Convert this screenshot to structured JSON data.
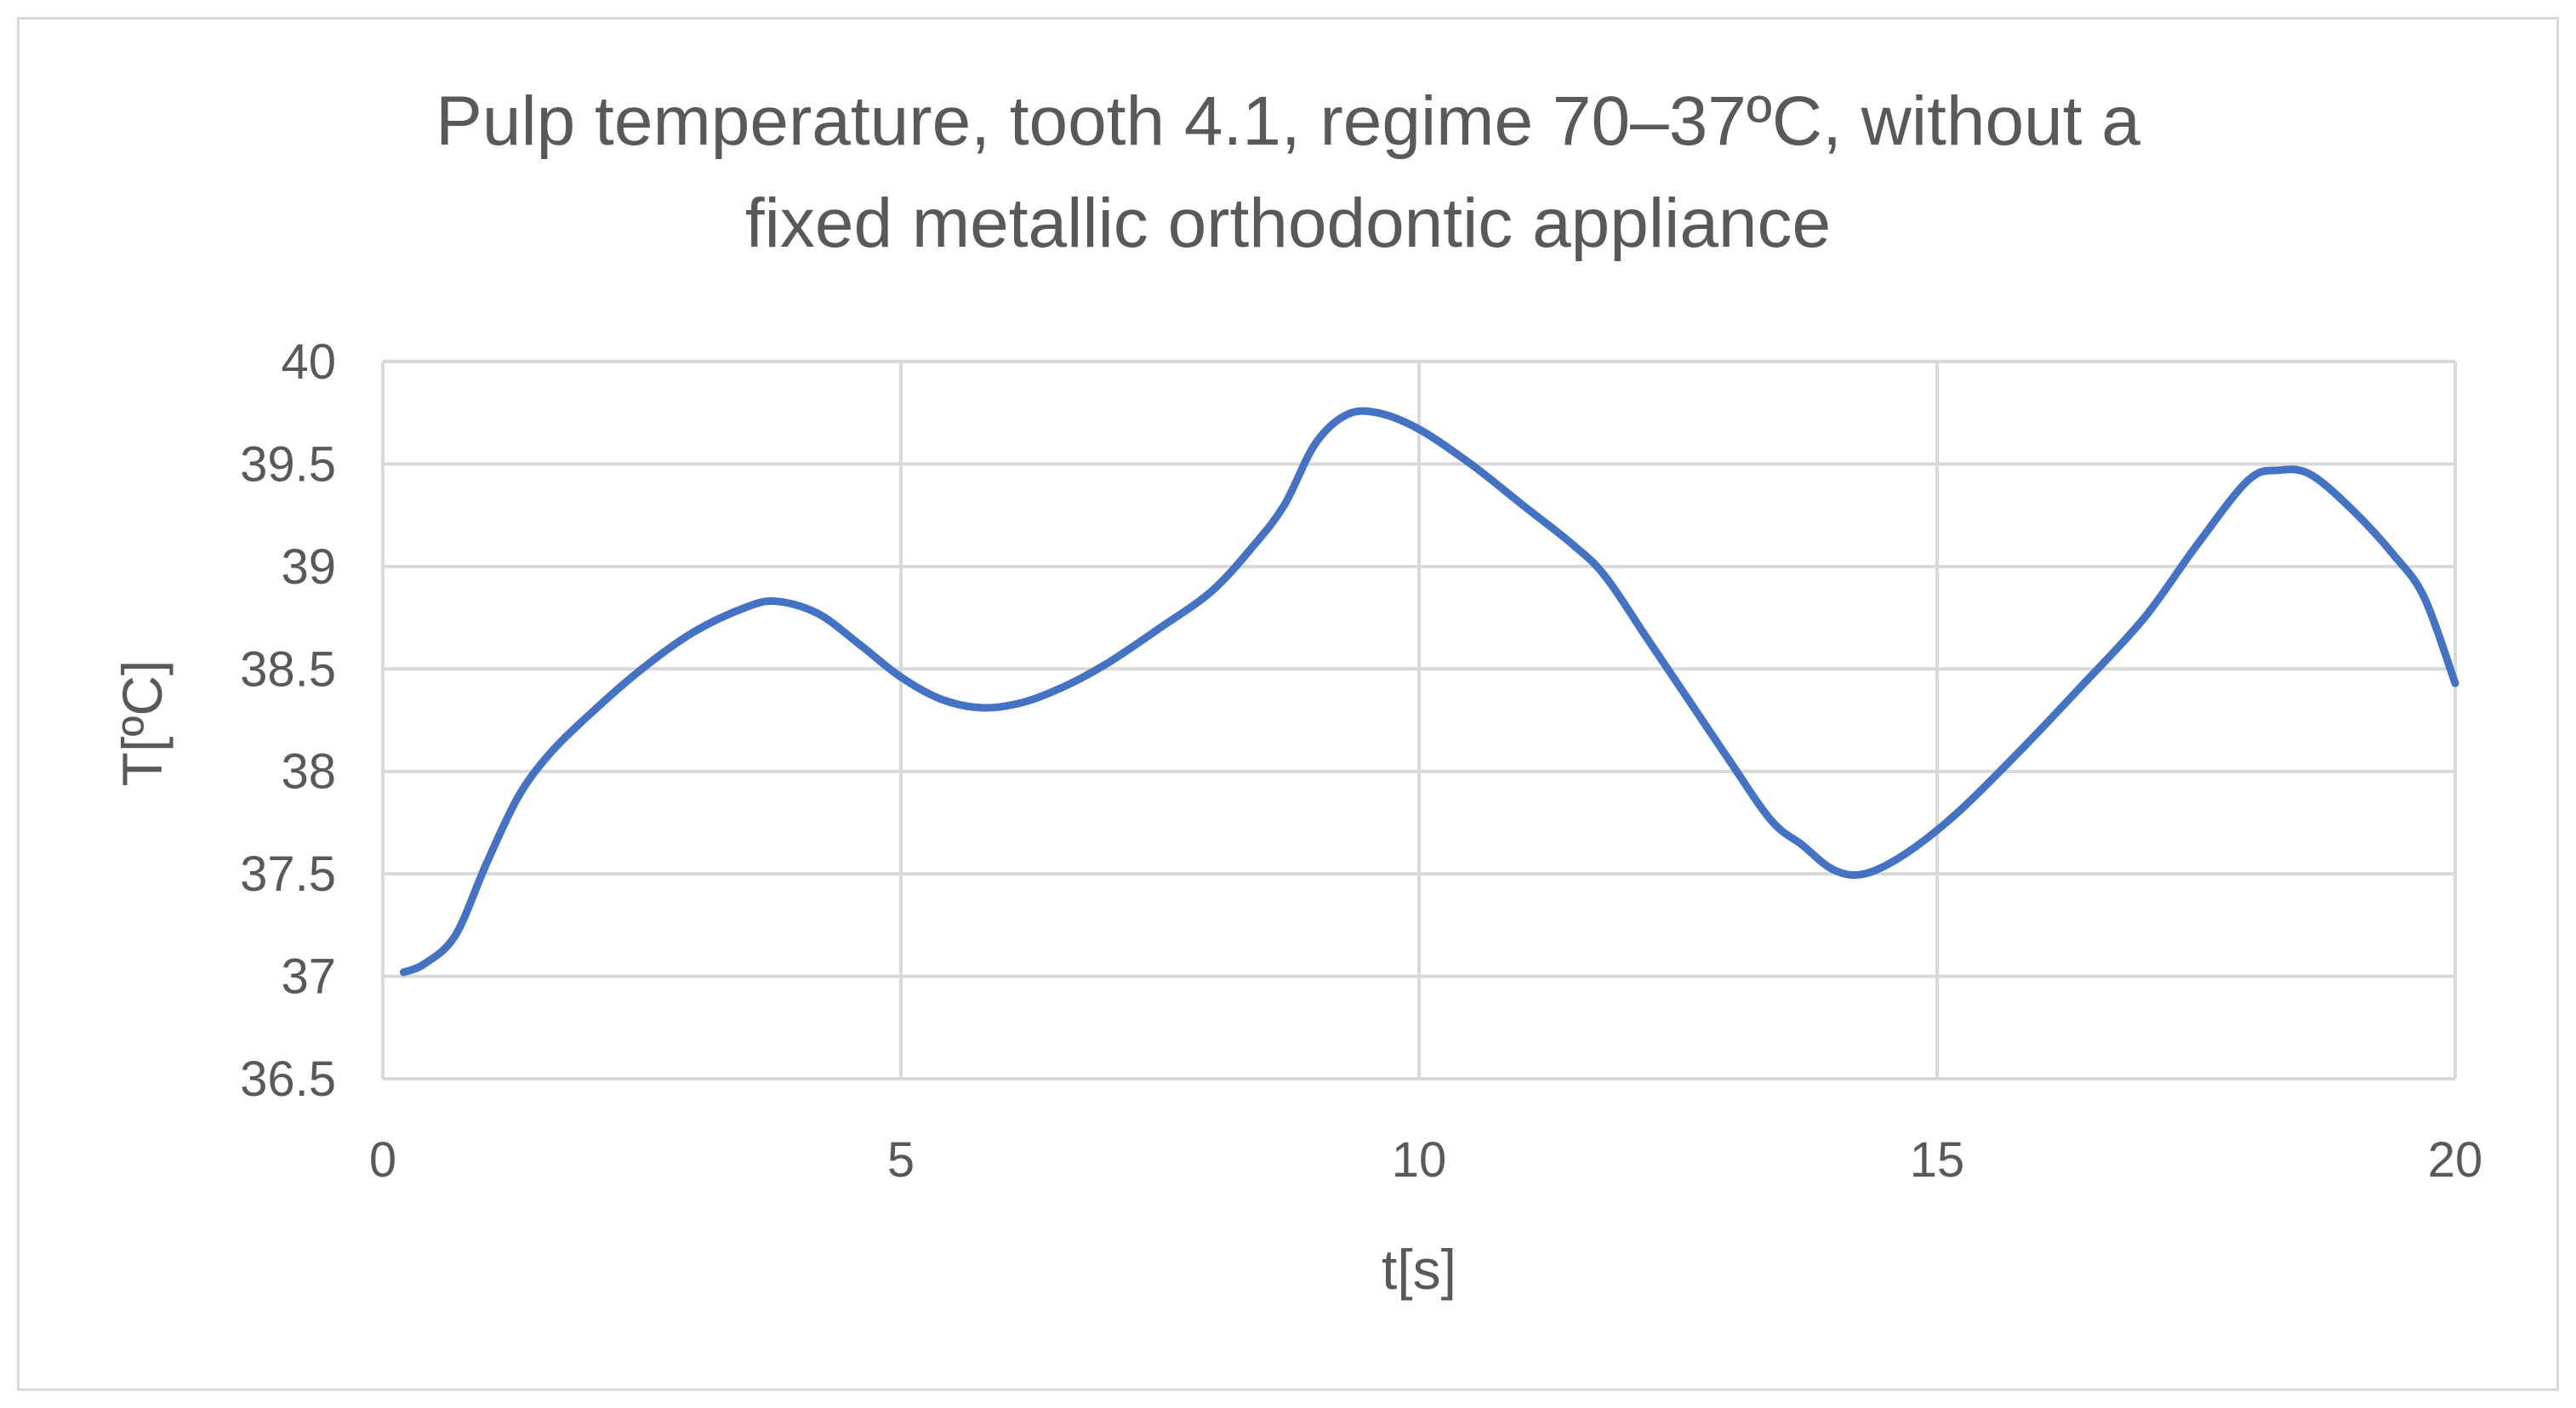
{
  "chart_data": {
    "type": "line",
    "title_line1": "Pulp temperature, tooth 4.1, regime 70–37ºC, without a",
    "title_line2": "fixed metallic orthodontic appliance",
    "xlabel": "t[s]",
    "ylabel": "T[ºC]",
    "xlim": [
      0,
      20
    ],
    "ylim": [
      36.5,
      40
    ],
    "x_ticks": [
      0,
      5,
      10,
      15,
      20
    ],
    "y_ticks": [
      36.5,
      37,
      37.5,
      38,
      38.5,
      39,
      39.5,
      40
    ],
    "grid": true,
    "series": [
      {
        "color": "#4472c4",
        "points": [
          [
            0.2,
            37.02
          ],
          [
            0.4,
            37.06
          ],
          [
            0.7,
            37.2
          ],
          [
            1.0,
            37.55
          ],
          [
            1.3,
            37.87
          ],
          [
            1.6,
            38.08
          ],
          [
            2.0,
            38.28
          ],
          [
            2.5,
            38.5
          ],
          [
            3.0,
            38.68
          ],
          [
            3.5,
            38.8
          ],
          [
            3.8,
            38.83
          ],
          [
            4.2,
            38.77
          ],
          [
            4.6,
            38.62
          ],
          [
            5.0,
            38.46
          ],
          [
            5.4,
            38.35
          ],
          [
            5.8,
            38.31
          ],
          [
            6.2,
            38.34
          ],
          [
            6.6,
            38.42
          ],
          [
            7.0,
            38.53
          ],
          [
            7.5,
            38.7
          ],
          [
            8.0,
            38.88
          ],
          [
            8.4,
            39.1
          ],
          [
            8.7,
            39.3
          ],
          [
            9.0,
            39.6
          ],
          [
            9.3,
            39.74
          ],
          [
            9.6,
            39.75
          ],
          [
            10.0,
            39.67
          ],
          [
            10.5,
            39.5
          ],
          [
            11.0,
            39.3
          ],
          [
            11.5,
            39.1
          ],
          [
            11.8,
            38.95
          ],
          [
            12.2,
            38.65
          ],
          [
            12.6,
            38.35
          ],
          [
            13.0,
            38.05
          ],
          [
            13.4,
            37.76
          ],
          [
            13.7,
            37.64
          ],
          [
            14.0,
            37.52
          ],
          [
            14.3,
            37.5
          ],
          [
            14.7,
            37.6
          ],
          [
            15.2,
            37.8
          ],
          [
            15.8,
            38.1
          ],
          [
            16.4,
            38.42
          ],
          [
            17.0,
            38.75
          ],
          [
            17.5,
            39.1
          ],
          [
            18.0,
            39.42
          ],
          [
            18.3,
            39.47
          ],
          [
            18.6,
            39.45
          ],
          [
            19.0,
            39.28
          ],
          [
            19.4,
            39.06
          ],
          [
            19.7,
            38.85
          ],
          [
            20.0,
            38.43
          ]
        ]
      }
    ]
  }
}
